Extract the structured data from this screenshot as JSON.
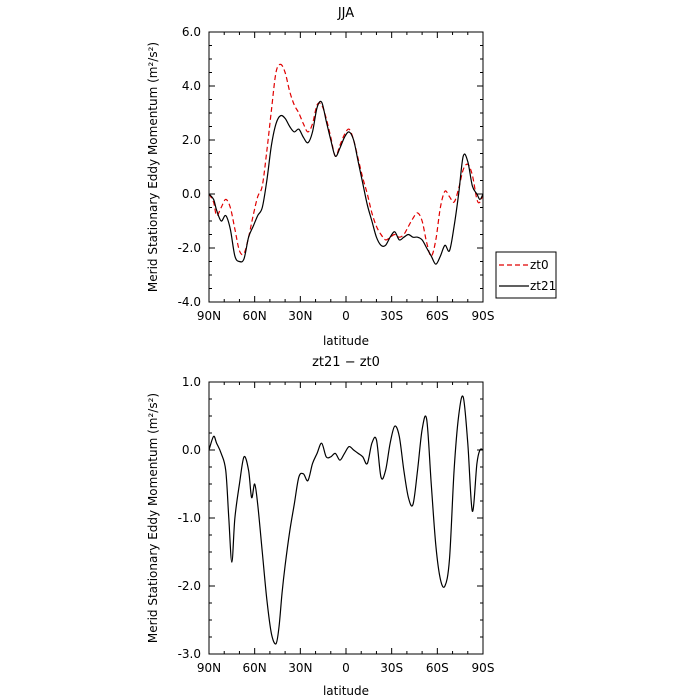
{
  "chart_data": [
    {
      "type": "line",
      "title": "JJA",
      "xlabel": "latitude",
      "ylabel": "Merid Stationary Eddy Momentum (m²/s²)",
      "ylim": [
        -4.0,
        6.0
      ],
      "xlim": [
        90,
        -90
      ],
      "xticks": [
        {
          "value": 90,
          "label": "90N"
        },
        {
          "value": 60,
          "label": "60N"
        },
        {
          "value": 30,
          "label": "30N"
        },
        {
          "value": 0,
          "label": "0"
        },
        {
          "value": -30,
          "label": "30S"
        },
        {
          "value": -60,
          "label": "60S"
        },
        {
          "value": -90,
          "label": "90S"
        }
      ],
      "yticks": [
        {
          "value": 6,
          "label": "6.0"
        },
        {
          "value": 4,
          "label": "4.0"
        },
        {
          "value": 2,
          "label": "2.0"
        },
        {
          "value": 0,
          "label": "0.0"
        },
        {
          "value": -2,
          "label": "-2.0"
        },
        {
          "value": -4,
          "label": "-4.0"
        }
      ],
      "legend_position": "right",
      "series": [
        {
          "name": "zt0",
          "color": "#e00000",
          "dash": true,
          "x": [
            90,
            87,
            85,
            82,
            79,
            76,
            73,
            70,
            67,
            64,
            61,
            58,
            55,
            52,
            49,
            46,
            43,
            40,
            37,
            34,
            31,
            28,
            25,
            22,
            19,
            16,
            13,
            10,
            7,
            4,
            1,
            -2,
            -5,
            -8,
            -11,
            -14,
            -17,
            -20,
            -23,
            -26,
            -29,
            -32,
            -35,
            -38,
            -41,
            -44,
            -47,
            -50,
            -53,
            -56,
            -59,
            -62,
            -65,
            -68,
            -71,
            -74,
            -77,
            -80,
            -83,
            -86,
            -88,
            -90
          ],
          "y": [
            0.0,
            -0.3,
            -0.8,
            -0.5,
            -0.2,
            -0.5,
            -1.3,
            -2.1,
            -2.2,
            -1.6,
            -0.8,
            -0.1,
            0.3,
            1.6,
            3.1,
            4.5,
            4.8,
            4.5,
            3.8,
            3.3,
            3.0,
            2.6,
            2.3,
            2.6,
            3.3,
            3.3,
            2.8,
            2.1,
            1.4,
            1.8,
            2.2,
            2.4,
            2.0,
            1.3,
            0.6,
            0.0,
            -0.7,
            -1.2,
            -1.5,
            -1.7,
            -1.6,
            -1.5,
            -1.6,
            -1.5,
            -1.2,
            -0.9,
            -0.7,
            -1.0,
            -1.8,
            -2.3,
            -1.7,
            -0.5,
            0.1,
            -0.1,
            -0.3,
            0.2,
            0.9,
            1.1,
            0.7,
            -0.2,
            -0.3,
            0.0
          ]
        },
        {
          "name": "zt21",
          "color": "#000000",
          "dash": false,
          "x": [
            90,
            87,
            85,
            82,
            79,
            76,
            73,
            70,
            67,
            64,
            61,
            58,
            55,
            52,
            49,
            46,
            43,
            40,
            37,
            34,
            31,
            28,
            25,
            22,
            19,
            16,
            13,
            10,
            7,
            4,
            1,
            -2,
            -5,
            -8,
            -11,
            -14,
            -17,
            -20,
            -23,
            -26,
            -29,
            -32,
            -35,
            -38,
            -41,
            -44,
            -47,
            -50,
            -53,
            -56,
            -59,
            -62,
            -65,
            -68,
            -71,
            -74,
            -77,
            -80,
            -83,
            -86,
            -88,
            -90
          ],
          "y": [
            0.0,
            -0.2,
            -0.6,
            -1.0,
            -0.8,
            -1.3,
            -2.3,
            -2.5,
            -2.4,
            -1.6,
            -1.2,
            -0.8,
            -0.5,
            0.5,
            1.8,
            2.6,
            2.9,
            2.8,
            2.5,
            2.3,
            2.4,
            2.1,
            1.9,
            2.3,
            3.2,
            3.4,
            2.7,
            2.0,
            1.4,
            1.7,
            2.1,
            2.3,
            2.0,
            1.2,
            0.4,
            -0.4,
            -1.0,
            -1.6,
            -1.9,
            -1.9,
            -1.6,
            -1.4,
            -1.7,
            -1.6,
            -1.5,
            -1.6,
            -1.6,
            -1.7,
            -2.0,
            -2.3,
            -2.6,
            -2.3,
            -1.9,
            -2.1,
            -1.2,
            0.0,
            1.4,
            1.2,
            0.3,
            0.0,
            -0.2,
            0.0
          ]
        }
      ]
    },
    {
      "type": "line",
      "title": "zt21 − zt0",
      "xlabel": "latitude",
      "ylabel": "Merid Stationary Eddy Momentum (m²/s²)",
      "ylim": [
        -3.0,
        1.0
      ],
      "xlim": [
        90,
        -90
      ],
      "xticks": [
        {
          "value": 90,
          "label": "90N"
        },
        {
          "value": 60,
          "label": "60N"
        },
        {
          "value": 30,
          "label": "30N"
        },
        {
          "value": 0,
          "label": "0"
        },
        {
          "value": -30,
          "label": "30S"
        },
        {
          "value": -60,
          "label": "60S"
        },
        {
          "value": -90,
          "label": "90S"
        }
      ],
      "yticks": [
        {
          "value": 1,
          "label": "1.0"
        },
        {
          "value": 0,
          "label": "0.0"
        },
        {
          "value": -1,
          "label": "-1.0"
        },
        {
          "value": -2,
          "label": "-2.0"
        },
        {
          "value": -3,
          "label": "-3.0"
        }
      ],
      "series": [
        {
          "name": "",
          "color": "#000000",
          "dash": false,
          "x": [
            90,
            87,
            85,
            82,
            79,
            77,
            75,
            73,
            70,
            67,
            64,
            62,
            60,
            58,
            55,
            52,
            49,
            46,
            44,
            42,
            40,
            37,
            34,
            31,
            28,
            25,
            22,
            19,
            16,
            13,
            10,
            7,
            4,
            1,
            -2,
            -5,
            -8,
            -11,
            -14,
            -17,
            -20,
            -23,
            -26,
            -29,
            -32,
            -35,
            -38,
            -41,
            -44,
            -47,
            -50,
            -53,
            -56,
            -59,
            -62,
            -65,
            -68,
            -71,
            -74,
            -77,
            -80,
            -83,
            -86,
            -88,
            -90
          ],
          "y": [
            0.0,
            0.2,
            0.1,
            -0.05,
            -0.3,
            -1.0,
            -1.65,
            -1.0,
            -0.5,
            -0.1,
            -0.3,
            -0.7,
            -0.5,
            -0.8,
            -1.5,
            -2.2,
            -2.7,
            -2.85,
            -2.6,
            -2.1,
            -1.7,
            -1.2,
            -0.8,
            -0.4,
            -0.35,
            -0.45,
            -0.2,
            -0.05,
            0.1,
            -0.1,
            -0.1,
            -0.05,
            -0.15,
            -0.05,
            0.05,
            0.0,
            -0.05,
            -0.1,
            -0.2,
            0.1,
            0.15,
            -0.4,
            -0.3,
            0.1,
            0.35,
            0.2,
            -0.3,
            -0.7,
            -0.8,
            -0.3,
            0.3,
            0.45,
            -0.5,
            -1.4,
            -1.9,
            -2.0,
            -1.6,
            -0.3,
            0.5,
            0.78,
            0.1,
            -0.9,
            -0.2,
            0.0,
            0.0
          ]
        }
      ]
    }
  ]
}
